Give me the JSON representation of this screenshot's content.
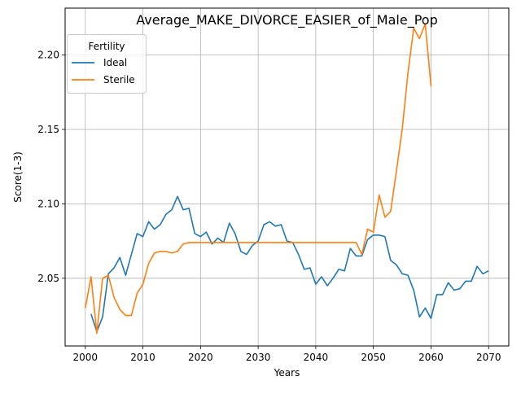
{
  "chart_data": {
    "type": "line",
    "title": "Average_MAKE_DIVORCE_EASIER_of_Male_Pop",
    "xlabel": "Years",
    "ylabel": "Score(1-3)",
    "xlim": [
      1996.5,
      2073.5
    ],
    "ylim": [
      2.0045,
      2.2315
    ],
    "xticks": [
      2000,
      2010,
      2020,
      2030,
      2040,
      2050,
      2060,
      2070
    ],
    "yticks": [
      2.05,
      2.1,
      2.15,
      2.2
    ],
    "ytick_labels": [
      "2.05",
      "2.10",
      "2.15",
      "2.20"
    ],
    "grid": true,
    "legend": {
      "title": "Fertility",
      "placement": "top-left"
    },
    "series": [
      {
        "name": "Ideal",
        "color": "#1f77b4",
        "x": [
          2001,
          2002,
          2003,
          2004,
          2005,
          2006,
          2007,
          2008,
          2009,
          2010,
          2011,
          2012,
          2013,
          2014,
          2015,
          2016,
          2017,
          2018,
          2019,
          2020,
          2021,
          2022,
          2023,
          2024,
          2025,
          2026,
          2027,
          2028,
          2029,
          2030,
          2031,
          2032,
          2033,
          2034,
          2035,
          2036,
          2037,
          2038,
          2039,
          2040,
          2041,
          2042,
          2043,
          2044,
          2045,
          2046,
          2047,
          2048,
          2049,
          2050,
          2051,
          2052,
          2053,
          2054,
          2055,
          2056,
          2057,
          2058,
          2059,
          2060,
          2061,
          2062,
          2063,
          2064,
          2065,
          2066,
          2067,
          2068,
          2069,
          2070
        ],
        "y": [
          2.026,
          2.014,
          2.024,
          2.053,
          2.057,
          2.064,
          2.052,
          2.066,
          2.08,
          2.078,
          2.088,
          2.083,
          2.086,
          2.093,
          2.096,
          2.105,
          2.096,
          2.097,
          2.08,
          2.078,
          2.081,
          2.073,
          2.077,
          2.074,
          2.087,
          2.08,
          2.068,
          2.066,
          2.072,
          2.075,
          2.086,
          2.088,
          2.085,
          2.086,
          2.075,
          2.074,
          2.066,
          2.056,
          2.057,
          2.046,
          2.051,
          2.045,
          2.05,
          2.056,
          2.055,
          2.07,
          2.065,
          2.065,
          2.076,
          2.079,
          2.079,
          2.078,
          2.062,
          2.059,
          2.053,
          2.052,
          2.042,
          2.024,
          2.03,
          2.023,
          2.039,
          2.039,
          2.047,
          2.042,
          2.043,
          2.048,
          2.048,
          2.058,
          2.053,
          2.055
        ]
      },
      {
        "name": "Sterile",
        "color": "#ff7f0e",
        "x": [
          2000,
          2001,
          2002,
          2003,
          2004,
          2005,
          2006,
          2007,
          2008,
          2009,
          2010,
          2011,
          2012,
          2013,
          2014,
          2015,
          2016,
          2017,
          2018,
          2019,
          2020,
          2021,
          2022,
          2023,
          2024,
          2025,
          2026,
          2027,
          2028,
          2029,
          2030,
          2031,
          2032,
          2033,
          2034,
          2035,
          2036,
          2037,
          2038,
          2039,
          2040,
          2041,
          2042,
          2043,
          2044,
          2045,
          2046,
          2047,
          2048,
          2049,
          2050,
          2051,
          2052,
          2053,
          2054,
          2055,
          2056,
          2057,
          2058,
          2059,
          2060
        ],
        "y": [
          2.03,
          2.051,
          2.013,
          2.05,
          2.052,
          2.037,
          2.029,
          2.025,
          2.025,
          2.04,
          2.046,
          2.06,
          2.067,
          2.068,
          2.068,
          2.067,
          2.068,
          2.073,
          2.074,
          2.074,
          2.074,
          2.074,
          2.074,
          2.074,
          2.074,
          2.074,
          2.074,
          2.074,
          2.074,
          2.074,
          2.074,
          2.074,
          2.074,
          2.074,
          2.074,
          2.074,
          2.074,
          2.074,
          2.074,
          2.074,
          2.074,
          2.074,
          2.074,
          2.074,
          2.074,
          2.074,
          2.074,
          2.074,
          2.066,
          2.083,
          2.081,
          2.106,
          2.091,
          2.095,
          2.122,
          2.15,
          2.188,
          2.218,
          2.211,
          2.221,
          2.179
        ]
      }
    ]
  }
}
